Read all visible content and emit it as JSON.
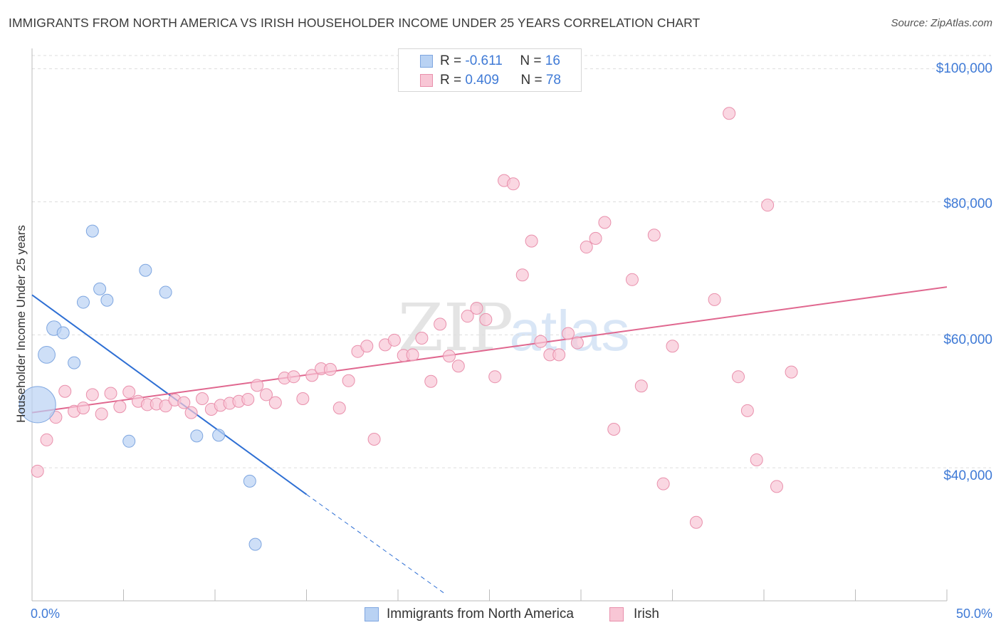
{
  "title": "IMMIGRANTS FROM NORTH AMERICA VS IRISH HOUSEHOLDER INCOME UNDER 25 YEARS CORRELATION CHART",
  "source": "Source: ZipAtlas.com",
  "watermark": {
    "zip": "ZIP",
    "atlas": "atlas"
  },
  "legend_top": [
    {
      "r_label": "R = ",
      "r_value": "-0.611",
      "n_label": "N = ",
      "n_value": "16"
    },
    {
      "r_label": "R = ",
      "r_value": "0.409",
      "n_label": "N = ",
      "n_value": "78"
    }
  ],
  "legend_bottom": [
    "Immigrants from North America",
    "Irish"
  ],
  "chart_data": {
    "type": "scatter",
    "ylabel": "Householder Income Under 25 years",
    "xlabel": "",
    "x_tick_labels": [
      "0.0%",
      "50.0%"
    ],
    "y_tick_labels": [
      "$40,000",
      "$60,000",
      "$80,000",
      "$100,000"
    ],
    "y_ticks": [
      40000,
      60000,
      80000,
      100000
    ],
    "xlim": [
      0,
      50
    ],
    "ylim": [
      20000,
      102000
    ],
    "grid": "horizontal dashed",
    "legend_position": "top-center",
    "colors": {
      "blue_fill": "#b9d2f3",
      "blue_stroke": "#7ea6e0",
      "blue_line": "#2e6fd4",
      "pink_fill": "#f8c6d5",
      "pink_stroke": "#e990ac",
      "pink_line": "#e0678f",
      "axis_text": "#3f7ad6"
    },
    "series": [
      {
        "name": "Immigrants from North America",
        "color": "blue",
        "points": [
          [
            0.3,
            49500,
            3
          ],
          [
            0.8,
            57000,
            1.4
          ],
          [
            1.2,
            61000,
            1.2
          ],
          [
            1.7,
            60300,
            1
          ],
          [
            2.3,
            55800,
            1
          ],
          [
            2.8,
            64900,
            1
          ],
          [
            3.3,
            75600,
            1
          ],
          [
            3.7,
            66900,
            1
          ],
          [
            4.1,
            65200,
            1
          ],
          [
            5.3,
            44000,
            1
          ],
          [
            6.2,
            69700,
            1
          ],
          [
            7.3,
            66400,
            1
          ],
          [
            9.0,
            44800,
            1
          ],
          [
            10.2,
            44900,
            1
          ],
          [
            11.9,
            38000,
            1
          ],
          [
            12.2,
            28500,
            1
          ]
        ],
        "trend": {
          "x": [
            0,
            15
          ],
          "y": [
            66000,
            36000
          ],
          "dashed_to": [
            22.6,
            21000
          ]
        }
      },
      {
        "name": "Irish",
        "color": "pink",
        "points": [
          [
            0.3,
            39500
          ],
          [
            0.8,
            44200
          ],
          [
            1.3,
            47600
          ],
          [
            1.8,
            51500
          ],
          [
            2.3,
            48500
          ],
          [
            2.8,
            49000
          ],
          [
            3.3,
            51000
          ],
          [
            3.8,
            48100
          ],
          [
            4.3,
            51200
          ],
          [
            4.8,
            49200
          ],
          [
            5.3,
            51400
          ],
          [
            5.8,
            50000
          ],
          [
            6.3,
            49500
          ],
          [
            6.8,
            49600
          ],
          [
            7.3,
            49300
          ],
          [
            7.8,
            50200
          ],
          [
            8.3,
            49800
          ],
          [
            8.7,
            48300
          ],
          [
            9.3,
            50400
          ],
          [
            9.8,
            48800
          ],
          [
            10.3,
            49400
          ],
          [
            10.8,
            49700
          ],
          [
            11.3,
            50000
          ],
          [
            11.8,
            50300
          ],
          [
            12.3,
            52400
          ],
          [
            12.8,
            51000
          ],
          [
            13.3,
            49800
          ],
          [
            13.8,
            53500
          ],
          [
            14.3,
            53700
          ],
          [
            14.8,
            50400
          ],
          [
            15.3,
            53900
          ],
          [
            15.8,
            54900
          ],
          [
            16.3,
            54800
          ],
          [
            16.8,
            49000
          ],
          [
            17.3,
            53100
          ],
          [
            17.8,
            57500
          ],
          [
            18.3,
            58300
          ],
          [
            18.7,
            44300
          ],
          [
            19.3,
            58500
          ],
          [
            19.8,
            59200
          ],
          [
            20.3,
            56900
          ],
          [
            20.8,
            57000
          ],
          [
            21.3,
            59500
          ],
          [
            21.8,
            53000
          ],
          [
            22.3,
            61600
          ],
          [
            22.8,
            56800
          ],
          [
            23.3,
            55300
          ],
          [
            23.8,
            62800
          ],
          [
            24.3,
            64000
          ],
          [
            24.8,
            62300
          ],
          [
            25.3,
            53700
          ],
          [
            25.8,
            83200
          ],
          [
            26.3,
            82700
          ],
          [
            26.8,
            69000
          ],
          [
            27.3,
            74100
          ],
          [
            27.8,
            59000
          ],
          [
            28.3,
            57000
          ],
          [
            28.8,
            57000
          ],
          [
            29.3,
            60200
          ],
          [
            29.8,
            58800
          ],
          [
            30.3,
            73200
          ],
          [
            30.8,
            74500
          ],
          [
            31.3,
            76900
          ],
          [
            31.8,
            45800
          ],
          [
            32.8,
            68300
          ],
          [
            33.3,
            52300
          ],
          [
            34.0,
            75000
          ],
          [
            34.5,
            37600
          ],
          [
            35.0,
            58300
          ],
          [
            36.3,
            31800
          ],
          [
            37.3,
            65300
          ],
          [
            38.1,
            93300
          ],
          [
            38.6,
            53700
          ],
          [
            39.1,
            48600
          ],
          [
            39.6,
            41200
          ],
          [
            40.2,
            79500
          ],
          [
            40.7,
            37200
          ],
          [
            41.5,
            54400
          ]
        ],
        "trend": {
          "x": [
            0,
            50
          ],
          "y": [
            48300,
            67200
          ]
        }
      }
    ]
  }
}
